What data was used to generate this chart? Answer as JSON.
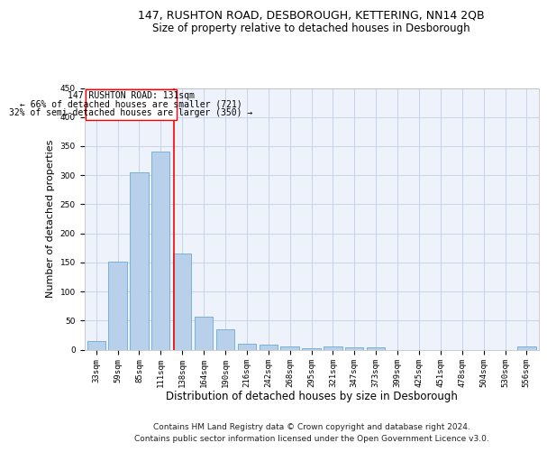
{
  "title": "147, RUSHTON ROAD, DESBOROUGH, KETTERING, NN14 2QB",
  "subtitle": "Size of property relative to detached houses in Desborough",
  "xlabel": "Distribution of detached houses by size in Desborough",
  "ylabel": "Number of detached properties",
  "bar_color": "#b8d0ea",
  "bar_edge_color": "#6aaad4",
  "grid_color": "#c8d4e8",
  "background_color": "#eef2fa",
  "categories": [
    "33sqm",
    "59sqm",
    "85sqm",
    "111sqm",
    "138sqm",
    "164sqm",
    "190sqm",
    "216sqm",
    "242sqm",
    "268sqm",
    "295sqm",
    "321sqm",
    "347sqm",
    "373sqm",
    "399sqm",
    "425sqm",
    "451sqm",
    "478sqm",
    "504sqm",
    "530sqm",
    "556sqm"
  ],
  "values": [
    15,
    152,
    305,
    340,
    165,
    57,
    35,
    10,
    9,
    5,
    2,
    5,
    4,
    4,
    0,
    0,
    0,
    0,
    0,
    0,
    5
  ],
  "ylim": [
    0,
    450
  ],
  "yticks": [
    0,
    50,
    100,
    150,
    200,
    250,
    300,
    350,
    400,
    450
  ],
  "red_line_x": 3.62,
  "annotation_title": "147 RUSHTON ROAD: 131sqm",
  "annotation_line1": "← 66% of detached houses are smaller (721)",
  "annotation_line2": "32% of semi-detached houses are larger (350) →",
  "footnote1": "Contains HM Land Registry data © Crown copyright and database right 2024.",
  "footnote2": "Contains public sector information licensed under the Open Government Licence v3.0.",
  "title_fontsize": 9,
  "subtitle_fontsize": 8.5,
  "annotation_fontsize": 7,
  "ylabel_fontsize": 8,
  "xlabel_fontsize": 8.5,
  "tick_fontsize": 6.5,
  "footnote_fontsize": 6.5
}
